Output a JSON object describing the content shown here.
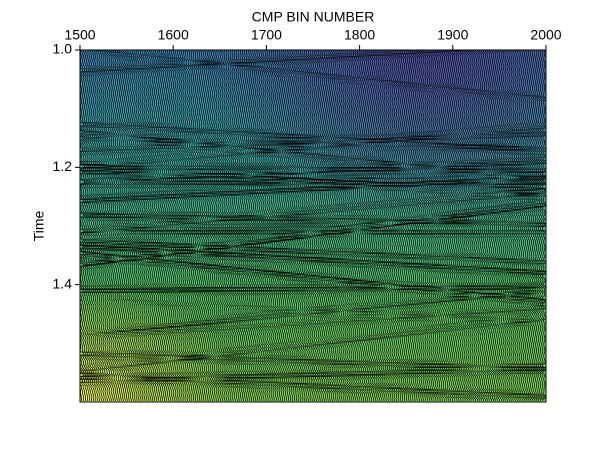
{
  "chart_data": {
    "type": "seismic",
    "xlabel": "CMP BIN NUMBER",
    "ylabel": "Time",
    "xlim": [
      1500,
      2000
    ],
    "xticks": [
      1500,
      1600,
      1700,
      1800,
      1900,
      2000
    ],
    "ylim": [
      1,
      1.6
    ],
    "yticks": [
      {
        "value": 1,
        "label": "1.0"
      },
      1.2,
      1.4
    ],
    "y_inverted": true
  }
}
